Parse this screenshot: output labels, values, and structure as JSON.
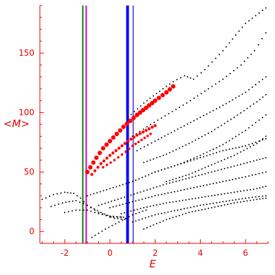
{
  "chart_data": {
    "type": "scatter",
    "xlabel": "E",
    "ylabel": "<M>",
    "title": "",
    "xlim": [
      -3.1,
      7.0
    ],
    "ylim": [
      -10,
      190
    ],
    "x_ticks": [
      -2,
      0,
      2,
      4,
      6
    ],
    "y_ticks": [
      0,
      50,
      100,
      150
    ],
    "axis_color": "#e60000",
    "grid": false,
    "legend": "none",
    "vertical_lines": [
      {
        "x": -1.2,
        "color": "#008000"
      },
      {
        "x": -1.05,
        "color": "#cc00cc"
      },
      {
        "x": 0.78,
        "color": "#0000ff"
      },
      {
        "x": 1.03,
        "color": "#6a5acd"
      }
    ],
    "series": [
      {
        "color": "#000000",
        "marker": "dots",
        "branches": [
          {
            "x": [
              -3.0,
              -2.5,
              -2.0,
              -1.6,
              -1.3,
              -1.0,
              -0.5,
              0.0,
              0.5
            ],
            "y": [
              27,
              31,
              33,
              32,
              28,
              22,
              16,
              12,
              12
            ]
          },
          {
            "x": [
              -2.6,
              -2.1,
              -1.5,
              -1.0,
              -0.4,
              0.2,
              0.8
            ],
            "y": [
              21,
              24,
              26,
              22,
              16,
              11,
              10
            ]
          },
          {
            "x": [
              -2.0,
              -1.5,
              -1.0,
              -0.5,
              0.0,
              0.6
            ],
            "y": [
              16,
              18,
              18,
              15,
              13,
              12
            ]
          },
          {
            "x": [
              0.8,
              1.5,
              2.2,
              2.8,
              3.3,
              3.7,
              4.2,
              5.0,
              6.0,
              6.9
            ],
            "y": [
              96,
              108,
              118,
              126,
              131,
              128,
              136,
              152,
              175,
              188
            ]
          },
          {
            "x": [
              1.0,
              1.8,
              2.6,
              3.4,
              4.2,
              5.0,
              5.8,
              6.4,
              6.9
            ],
            "y": [
              80,
              90,
              99,
              108,
              118,
              128,
              140,
              152,
              167
            ]
          },
          {
            "x": [
              1.2,
              2.0,
              3.0,
              4.0,
              5.0,
              6.0,
              6.9
            ],
            "y": [
              68,
              76,
              86,
              96,
              106,
              117,
              130
            ]
          },
          {
            "x": [
              1.5,
              2.5,
              3.5,
              4.5,
              5.5,
              6.5,
              6.9
            ],
            "y": [
              58,
              65,
              74,
              84,
              96,
              109,
              115
            ]
          },
          {
            "x": [
              2.0,
              3.0,
              4.0,
              5.0,
              6.0,
              6.9
            ],
            "y": [
              50,
              56,
              64,
              73,
              85,
              98
            ]
          },
          {
            "x": [
              2.5,
              3.5,
              4.5,
              5.5,
              6.5,
              6.9
            ],
            "y": [
              42,
              48,
              56,
              64,
              74,
              80
            ]
          },
          {
            "x": [
              -1.0,
              0.0,
              1.0,
              2.0,
              3.0,
              4.0,
              5.0,
              6.0,
              6.9
            ],
            "y": [
              30,
              36,
              42,
              50,
              56,
              62,
              68,
              72,
              78
            ]
          },
          {
            "x": [
              -0.5,
              0.5,
              1.5,
              2.5,
              3.5,
              4.5,
              5.5,
              6.5,
              6.9
            ],
            "y": [
              22,
              28,
              34,
              40,
              45,
              50,
              55,
              60,
              62
            ]
          },
          {
            "x": [
              0.0,
              1.0,
              2.0,
              3.0,
              4.0,
              5.0,
              6.0,
              6.9
            ],
            "y": [
              20,
              25,
              30,
              34,
              38,
              42,
              46,
              50
            ]
          },
          {
            "x": [
              0.5,
              1.5,
              2.5,
              3.5,
              4.5,
              5.5,
              6.5,
              6.9
            ],
            "y": [
              15,
              20,
              24,
              27,
              30,
              33,
              36,
              38
            ]
          },
          {
            "x": [
              1.0,
              2.0,
              3.0,
              4.0,
              5.0,
              6.0,
              6.9
            ],
            "y": [
              8,
              14,
              18,
              22,
              25,
              28,
              30
            ]
          },
          {
            "x": [
              1.5,
              2.5,
              3.5,
              4.5,
              5.5,
              6.5,
              6.9
            ],
            "y": [
              2,
              10,
              16,
              20,
              24,
              27,
              28
            ]
          },
          {
            "x": [
              -0.8,
              -0.2,
              0.4,
              1.0,
              1.6
            ],
            "y": [
              -5,
              2,
              8,
              14,
              18
            ]
          }
        ]
      },
      {
        "color": "#ff0000",
        "marker": "dots",
        "branches": [
          {
            "x": [
              -1.0,
              -0.6,
              -0.3,
              0.0,
              0.3,
              0.6,
              0.9,
              1.2,
              1.6,
              2.0,
              2.5,
              2.8
            ],
            "y": [
              50,
              62,
              70,
              76,
              82,
              88,
              93,
              98,
              104,
              110,
              117,
              122
            ],
            "size": 3.2
          },
          {
            "x": [
              -0.8,
              -0.4,
              0.0,
              0.4,
              0.8,
              1.2,
              1.6,
              2.0
            ],
            "y": [
              48,
              57,
              64,
              70,
              76,
              81,
              85,
              89
            ],
            "size": 2.2
          },
          {
            "x": [
              -0.3,
              0.2,
              0.7,
              1.0,
              1.4,
              1.8
            ],
            "y": [
              54,
              60,
              67,
              72,
              77,
              82
            ],
            "size": 1.8
          }
        ]
      }
    ]
  }
}
